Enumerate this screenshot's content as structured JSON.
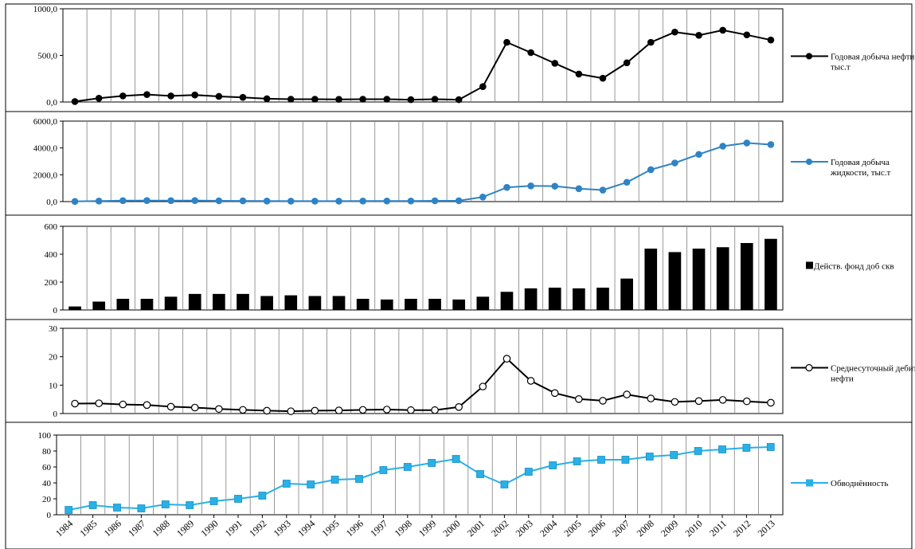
{
  "years": [
    "1984",
    "1985",
    "1986",
    "1987",
    "1988",
    "1989",
    "1990",
    "1991",
    "1992",
    "1993",
    "1994",
    "1995",
    "1996",
    "1997",
    "1998",
    "1999",
    "2000",
    "2001",
    "2002",
    "2003",
    "2004",
    "2005",
    "2006",
    "2007",
    "2008",
    "2009",
    "2010",
    "2011",
    "2012",
    "2013"
  ],
  "chart_data": [
    {
      "type": "line",
      "categories": [
        "1984",
        "1985",
        "1986",
        "1987",
        "1988",
        "1989",
        "1990",
        "1991",
        "1992",
        "1993",
        "1994",
        "1995",
        "1996",
        "1997",
        "1998",
        "1999",
        "2000",
        "2001",
        "2002",
        "2003",
        "2004",
        "2005",
        "2006",
        "2007",
        "2008",
        "2009",
        "2010",
        "2011",
        "2012",
        "2013"
      ],
      "series": [
        {
          "name": "Годовая добыча нефти, тыс.т",
          "values": [
            5,
            40,
            65,
            80,
            65,
            75,
            60,
            50,
            35,
            30,
            30,
            28,
            30,
            30,
            25,
            30,
            25,
            165,
            640,
            530,
            415,
            300,
            255,
            420,
            640,
            750,
            715,
            770,
            720,
            665
          ]
        }
      ],
      "ylim": [
        0,
        1000
      ],
      "ticks": [
        0,
        500,
        1000
      ],
      "tick_labels": [
        "0,0",
        "500,0",
        "1000,0"
      ],
      "legend_lines": [
        "Годовая добыча нефти,",
        "тыс.т"
      ],
      "color": "#000000",
      "marker": "filled-circle",
      "legend": "right",
      "grid": "vertical"
    },
    {
      "type": "line",
      "categories": [
        "1984",
        "1985",
        "1986",
        "1987",
        "1988",
        "1989",
        "1990",
        "1991",
        "1992",
        "1993",
        "1994",
        "1995",
        "1996",
        "1997",
        "1998",
        "1999",
        "2000",
        "2001",
        "2002",
        "2003",
        "2004",
        "2005",
        "2006",
        "2007",
        "2008",
        "2009",
        "2010",
        "2011",
        "2012",
        "2013"
      ],
      "series": [
        {
          "name": "Годовая добыча жидкости, тыс.т",
          "values": [
            10,
            40,
            70,
            80,
            70,
            80,
            60,
            55,
            40,
            35,
            35,
            35,
            40,
            45,
            45,
            60,
            65,
            340,
            1060,
            1170,
            1150,
            960,
            860,
            1440,
            2380,
            2880,
            3520,
            4130,
            4370,
            4250
          ]
        }
      ],
      "ylim": [
        0,
        6000
      ],
      "ticks": [
        0,
        2000,
        4000,
        6000
      ],
      "tick_labels": [
        "0,0",
        "2000,0",
        "4000,0",
        "6000,0"
      ],
      "legend_lines": [
        "Годовая добыча",
        "жидкости, тыс.т"
      ],
      "color": "#2f83c5",
      "marker": "filled-circle",
      "legend": "right",
      "grid": "vertical"
    },
    {
      "type": "bar",
      "categories": [
        "1984",
        "1985",
        "1986",
        "1987",
        "1988",
        "1989",
        "1990",
        "1991",
        "1992",
        "1993",
        "1994",
        "1995",
        "1996",
        "1997",
        "1998",
        "1999",
        "2000",
        "2001",
        "2002",
        "2003",
        "2004",
        "2005",
        "2006",
        "2007",
        "2008",
        "2009",
        "2010",
        "2011",
        "2012",
        "2013"
      ],
      "series": [
        {
          "name": "Действ. фонд доб скв",
          "values": [
            25,
            60,
            80,
            80,
            95,
            115,
            115,
            115,
            100,
            105,
            100,
            100,
            80,
            75,
            80,
            80,
            75,
            95,
            130,
            155,
            160,
            155,
            160,
            225,
            440,
            415,
            440,
            450,
            480,
            510
          ]
        }
      ],
      "ylim": [
        0,
        600
      ],
      "ticks": [
        0,
        200,
        400,
        600
      ],
      "tick_labels": [
        "0",
        "200",
        "400",
        "600"
      ],
      "legend_lines": [
        "Действ. фонд доб скв"
      ],
      "color": "#000000",
      "legend": "right",
      "grid": "vertical"
    },
    {
      "type": "line",
      "categories": [
        "1984",
        "1985",
        "1986",
        "1987",
        "1988",
        "1989",
        "1990",
        "1991",
        "1992",
        "1993",
        "1994",
        "1995",
        "1996",
        "1997",
        "1998",
        "1999",
        "2000",
        "2001",
        "2002",
        "2003",
        "2004",
        "2005",
        "2006",
        "2007",
        "2008",
        "2009",
        "2010",
        "2011",
        "2012",
        "2013"
      ],
      "series": [
        {
          "name": "Среднесуточный дебит нефти",
          "values": [
            3.5,
            3.6,
            3.2,
            3.0,
            2.4,
            2.1,
            1.6,
            1.3,
            1.0,
            0.8,
            1.0,
            1.1,
            1.3,
            1.4,
            1.2,
            1.2,
            2.3,
            9.5,
            19.3,
            11.5,
            7.2,
            5.1,
            4.5,
            6.7,
            5.3,
            4.1,
            4.4,
            4.8,
            4.3,
            3.8
          ]
        }
      ],
      "ylim": [
        0,
        30
      ],
      "ticks": [
        0,
        10,
        20,
        30
      ],
      "tick_labels": [
        "0",
        "10",
        "20",
        "30"
      ],
      "legend_lines": [
        "Среднесуточный дебит",
        "нефти"
      ],
      "color": "#000000",
      "marker": "open-circle",
      "legend": "right",
      "grid": "vertical"
    },
    {
      "type": "line",
      "categories": [
        "1984",
        "1985",
        "1986",
        "1987",
        "1988",
        "1989",
        "1990",
        "1991",
        "1992",
        "1993",
        "1994",
        "1995",
        "1996",
        "1997",
        "1998",
        "1999",
        "2000",
        "2001",
        "2002",
        "2003",
        "2004",
        "2005",
        "2006",
        "2007",
        "2008",
        "2009",
        "2010",
        "2011",
        "2012",
        "2013"
      ],
      "series": [
        {
          "name": "Обводнённость",
          "values": [
            6,
            12,
            9,
            8,
            13,
            12,
            17,
            20,
            24,
            39,
            38,
            44,
            45,
            56,
            60,
            65,
            70,
            51,
            38,
            54,
            62,
            67,
            69,
            69,
            73,
            75,
            80,
            82,
            84,
            85
          ]
        }
      ],
      "ylim": [
        0,
        100
      ],
      "ticks": [
        0,
        20,
        40,
        60,
        80,
        100
      ],
      "tick_labels": [
        "0",
        "20",
        "40",
        "60",
        "80",
        "100"
      ],
      "legend_lines": [
        "Обводнённость"
      ],
      "color": "#29b0e6",
      "marker": "square",
      "legend": "right",
      "grid": "vertical"
    }
  ]
}
